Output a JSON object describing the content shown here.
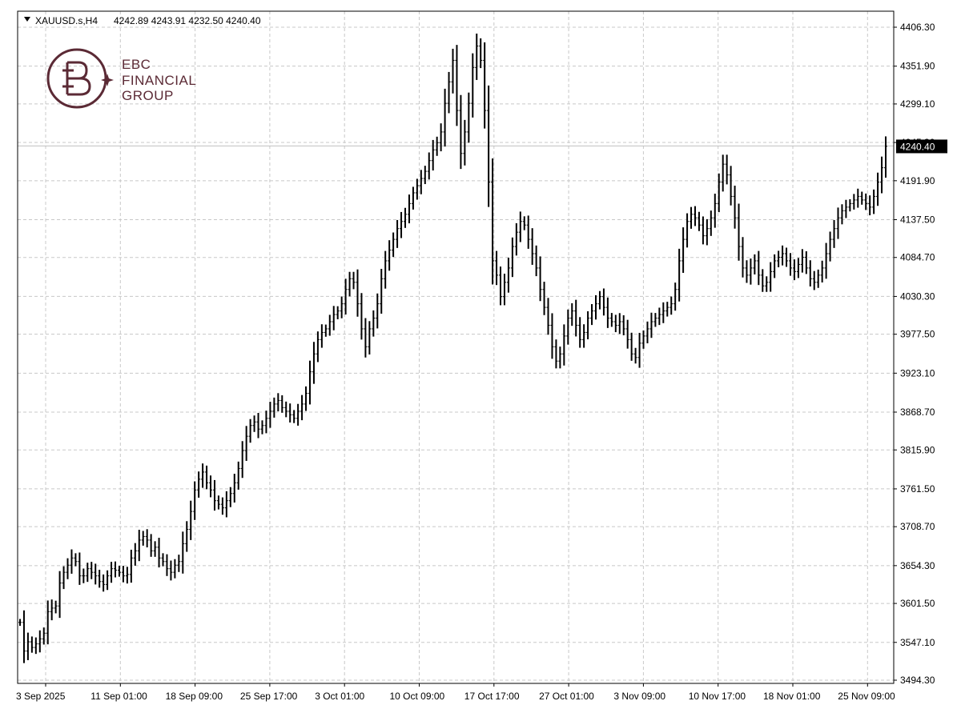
{
  "header": {
    "symbol": "XAUUSD.s,H4",
    "ohlc": "4242.89 4243.91 4232.50 4240.40"
  },
  "logo": {
    "line1": "EBC",
    "line2": "FINANCIAL",
    "line3": "GROUP"
  },
  "colors": {
    "bars": "#000000",
    "grid": "#c8c8c8",
    "brand": "#5b2a35",
    "price_line": "#c0c0c0"
  },
  "chart_data": {
    "type": "ohlc",
    "current_price": 4240.4,
    "current_price_label": "4240.40",
    "ylim": [
      3494.3,
      4406.3
    ],
    "y_ticks": [
      "4406.30",
      "4351.90",
      "4299.10",
      "4245.30",
      "4191.90",
      "4137.50",
      "4084.70",
      "4030.30",
      "3977.50",
      "3923.10",
      "3868.70",
      "3815.90",
      "3761.50",
      "3708.70",
      "3654.30",
      "3601.50",
      "3547.10",
      "3494.30"
    ],
    "x_ticks": [
      "3 Sep 2025",
      "11 Sep 01:00",
      "18 Sep 09:00",
      "25 Sep 17:00",
      "3 Oct 01:00",
      "10 Oct 09:00",
      "17 Oct 17:00",
      "27 Oct 01:00",
      "3 Nov 09:00",
      "10 Nov 17:00",
      "18 Nov 01:00",
      "25 Nov 09:00"
    ],
    "grid": true,
    "closes": [
      3575,
      3535,
      3548,
      3540,
      3545,
      3552,
      3560,
      3590,
      3595,
      3598,
      3630,
      3645,
      3655,
      3665,
      3660,
      3640,
      3640,
      3650,
      3645,
      3640,
      3632,
      3628,
      3640,
      3650,
      3648,
      3645,
      3640,
      3642,
      3665,
      3675,
      3690,
      3695,
      3690,
      3675,
      3680,
      3665,
      3660,
      3650,
      3645,
      3655,
      3660,
      3685,
      3705,
      3730,
      3760,
      3775,
      3785,
      3770,
      3760,
      3745,
      3740,
      3735,
      3745,
      3755,
      3770,
      3790,
      3815,
      3835,
      3850,
      3855,
      3845,
      3850,
      3860,
      3870,
      3880,
      3885,
      3875,
      3870,
      3865,
      3860,
      3870,
      3880,
      3895,
      3925,
      3950,
      3970,
      3980,
      3985,
      3995,
      4005,
      4010,
      4020,
      4040,
      4055,
      4050,
      4020,
      3985,
      3960,
      3985,
      4000,
      4020,
      4055,
      4080,
      4095,
      4110,
      4125,
      4135,
      4145,
      4160,
      4175,
      4185,
      4195,
      4205,
      4220,
      4235,
      4245,
      4260,
      4300,
      4330,
      4360,
      4290,
      4230,
      4260,
      4300,
      4350,
      4380,
      4360,
      4290,
      4190,
      4080,
      4060,
      4030,
      4050,
      4070,
      4100,
      4120,
      4135,
      4130,
      4110,
      4090,
      4070,
      4040,
      4015,
      3990,
      3960,
      3940,
      3950,
      3975,
      4000,
      4010,
      3990,
      3970,
      3980,
      4000,
      4010,
      4020,
      4030,
      4015,
      4000,
      3995,
      3990,
      3995,
      3985,
      3970,
      3950,
      3945,
      3965,
      3975,
      3985,
      3995,
      4000,
      4005,
      4010,
      4015,
      4020,
      4040,
      4080,
      4110,
      4135,
      4145,
      4140,
      4130,
      4115,
      4125,
      4140,
      4160,
      4190,
      4215,
      4200,
      4170,
      4140,
      4100,
      4070,
      4060,
      4070,
      4080,
      4060,
      4045,
      4050,
      4065,
      4080,
      4085,
      4090,
      4080,
      4070,
      4065,
      4075,
      4085,
      4070,
      4055,
      4050,
      4060,
      4070,
      4090,
      4110,
      4125,
      4140,
      4150,
      4155,
      4160,
      4165,
      4170,
      4165,
      4160,
      4155,
      4170,
      4190,
      4210,
      4240
    ]
  }
}
